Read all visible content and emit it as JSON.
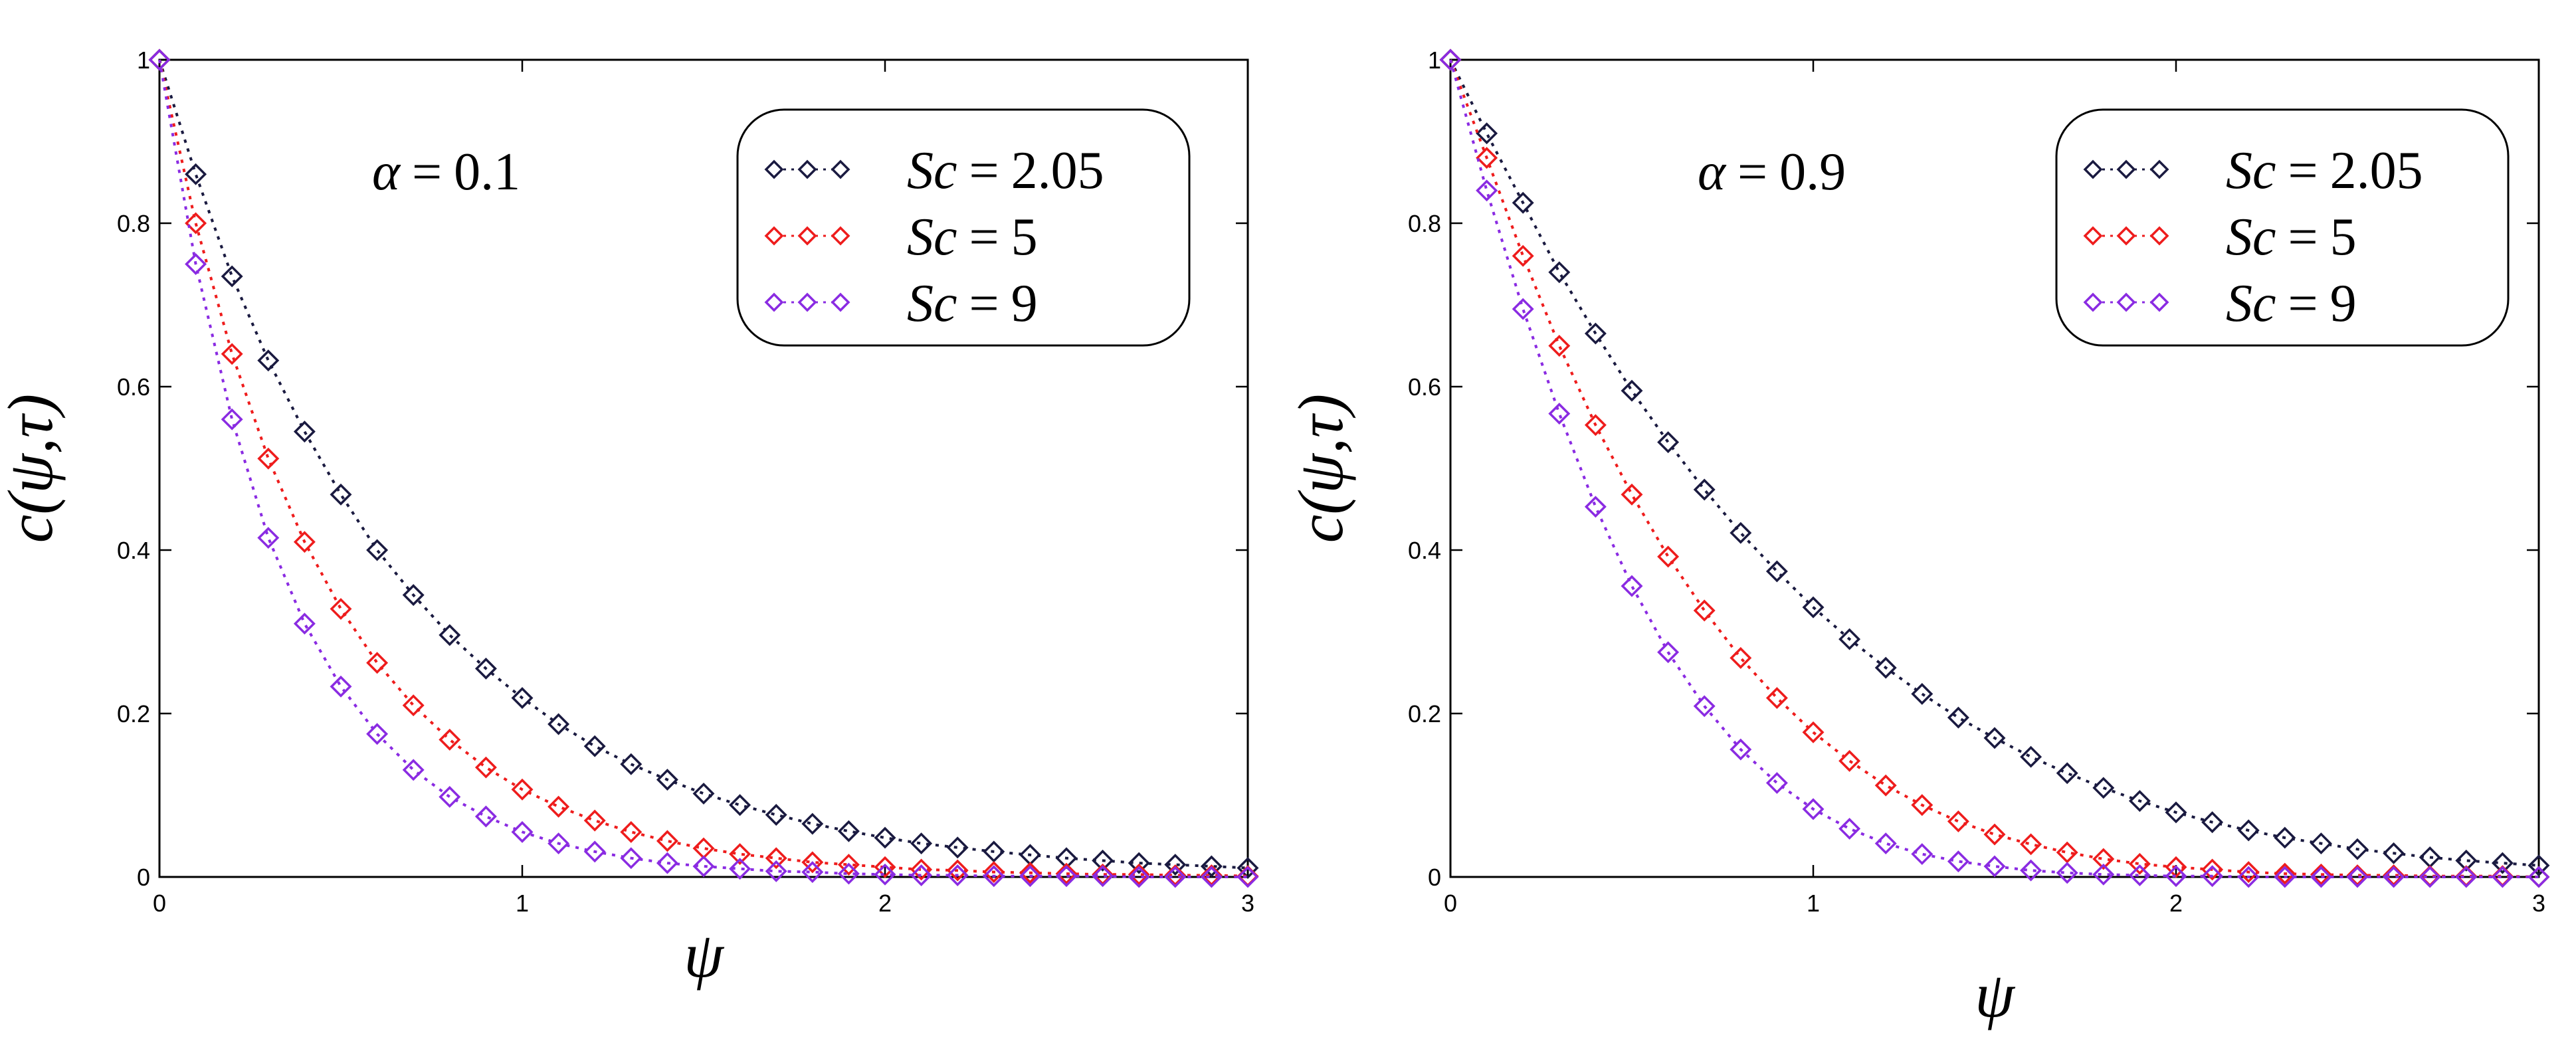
{
  "chart_data": [
    {
      "type": "scatter",
      "annotation": {
        "symbol": "α",
        "equals": "=",
        "value": "0.1"
      },
      "xlabel": "ψ",
      "ylabel": "c(ψ,τ)",
      "xlim": [
        0,
        3
      ],
      "ylim": [
        0,
        1
      ],
      "xticks": [
        0,
        1,
        2,
        3
      ],
      "yticks": [
        0,
        0.2,
        0.4,
        0.6,
        0.8,
        1
      ],
      "xtick_labels": [
        "0",
        "1",
        "2",
        "3"
      ],
      "ytick_labels": [
        "0",
        "0.2",
        "0.4",
        "0.6",
        "0.8",
        "1"
      ],
      "legend_position": "top-right",
      "x": [
        0,
        0.1,
        0.2,
        0.3,
        0.4,
        0.5,
        0.6,
        0.7,
        0.8,
        0.9,
        1.0,
        1.1,
        1.2,
        1.3,
        1.4,
        1.5,
        1.6,
        1.7,
        1.8,
        1.9,
        2.0,
        2.1,
        2.2,
        2.3,
        2.4,
        2.5,
        2.6,
        2.7,
        2.8,
        2.9,
        3.0
      ],
      "series": [
        {
          "name": "Sc = 2.05",
          "symbol": "Sc",
          "equals": "=",
          "value": "2.05",
          "color": "#1a1a40",
          "values": [
            1.0,
            0.86,
            0.735,
            0.632,
            0.545,
            0.468,
            0.4,
            0.345,
            0.296,
            0.255,
            0.219,
            0.187,
            0.16,
            0.138,
            0.119,
            0.102,
            0.088,
            0.076,
            0.065,
            0.056,
            0.048,
            0.041,
            0.036,
            0.031,
            0.027,
            0.023,
            0.02,
            0.017,
            0.015,
            0.013,
            0.011
          ]
        },
        {
          "name": "Sc = 5",
          "symbol": "Sc",
          "equals": "=",
          "value": "5",
          "color": "#ee1c1c",
          "values": [
            1.0,
            0.8,
            0.64,
            0.512,
            0.41,
            0.328,
            0.262,
            0.21,
            0.168,
            0.134,
            0.107,
            0.086,
            0.069,
            0.055,
            0.044,
            0.035,
            0.028,
            0.023,
            0.018,
            0.015,
            0.012,
            0.009,
            0.008,
            0.006,
            0.005,
            0.004,
            0.003,
            0.003,
            0.002,
            0.002,
            0.001
          ]
        },
        {
          "name": "Sc = 9",
          "symbol": "Sc",
          "equals": "=",
          "value": "9",
          "color": "#8a2be2",
          "values": [
            1.0,
            0.75,
            0.56,
            0.415,
            0.31,
            0.233,
            0.175,
            0.131,
            0.098,
            0.074,
            0.055,
            0.041,
            0.031,
            0.023,
            0.017,
            0.013,
            0.01,
            0.007,
            0.006,
            0.004,
            0.003,
            0.002,
            0.002,
            0.001,
            0.001,
            0.001,
            0.001,
            0.0,
            0.0,
            0.0,
            0.0
          ]
        }
      ]
    },
    {
      "type": "scatter",
      "annotation": {
        "symbol": "α",
        "equals": "=",
        "value": "0.9"
      },
      "xlabel": "ψ",
      "ylabel": "c(ψ,τ)",
      "xlim": [
        0,
        3
      ],
      "ylim": [
        0,
        1
      ],
      "xticks": [
        0,
        1,
        2,
        3
      ],
      "yticks": [
        0,
        0.2,
        0.4,
        0.6,
        0.8,
        1
      ],
      "xtick_labels": [
        "0",
        "1",
        "2",
        "3"
      ],
      "ytick_labels": [
        "0",
        "0.2",
        "0.4",
        "0.6",
        "0.8",
        "1"
      ],
      "legend_position": "top-right",
      "x": [
        0,
        0.1,
        0.2,
        0.3,
        0.4,
        0.5,
        0.6,
        0.7,
        0.8,
        0.9,
        1.0,
        1.1,
        1.2,
        1.3,
        1.4,
        1.5,
        1.6,
        1.7,
        1.8,
        1.9,
        2.0,
        2.1,
        2.2,
        2.3,
        2.4,
        2.5,
        2.6,
        2.7,
        2.8,
        2.9,
        3.0
      ],
      "series": [
        {
          "name": "Sc = 2.05",
          "symbol": "Sc",
          "equals": "=",
          "value": "2.05",
          "color": "#1a1a40",
          "values": [
            1.0,
            0.91,
            0.825,
            0.74,
            0.665,
            0.595,
            0.532,
            0.474,
            0.421,
            0.374,
            0.33,
            0.291,
            0.256,
            0.224,
            0.195,
            0.17,
            0.147,
            0.127,
            0.109,
            0.093,
            0.079,
            0.067,
            0.057,
            0.048,
            0.041,
            0.034,
            0.029,
            0.024,
            0.02,
            0.017,
            0.014
          ]
        },
        {
          "name": "Sc = 5",
          "symbol": "Sc",
          "equals": "=",
          "value": "5",
          "color": "#ee1c1c",
          "values": [
            1.0,
            0.88,
            0.76,
            0.65,
            0.553,
            0.468,
            0.392,
            0.326,
            0.268,
            0.219,
            0.177,
            0.142,
            0.112,
            0.088,
            0.068,
            0.052,
            0.04,
            0.03,
            0.022,
            0.016,
            0.012,
            0.009,
            0.006,
            0.004,
            0.003,
            0.002,
            0.002,
            0.001,
            0.001,
            0.001,
            0.0
          ]
        },
        {
          "name": "Sc = 9",
          "symbol": "Sc",
          "equals": "=",
          "value": "9",
          "color": "#8a2be2",
          "values": [
            1.0,
            0.84,
            0.695,
            0.567,
            0.453,
            0.356,
            0.275,
            0.209,
            0.156,
            0.115,
            0.083,
            0.059,
            0.041,
            0.028,
            0.019,
            0.013,
            0.008,
            0.005,
            0.003,
            0.002,
            0.001,
            0.001,
            0.0,
            0.0,
            0.0,
            0.0,
            0.0,
            0.0,
            0.0,
            0.0,
            0.0
          ]
        }
      ]
    }
  ]
}
